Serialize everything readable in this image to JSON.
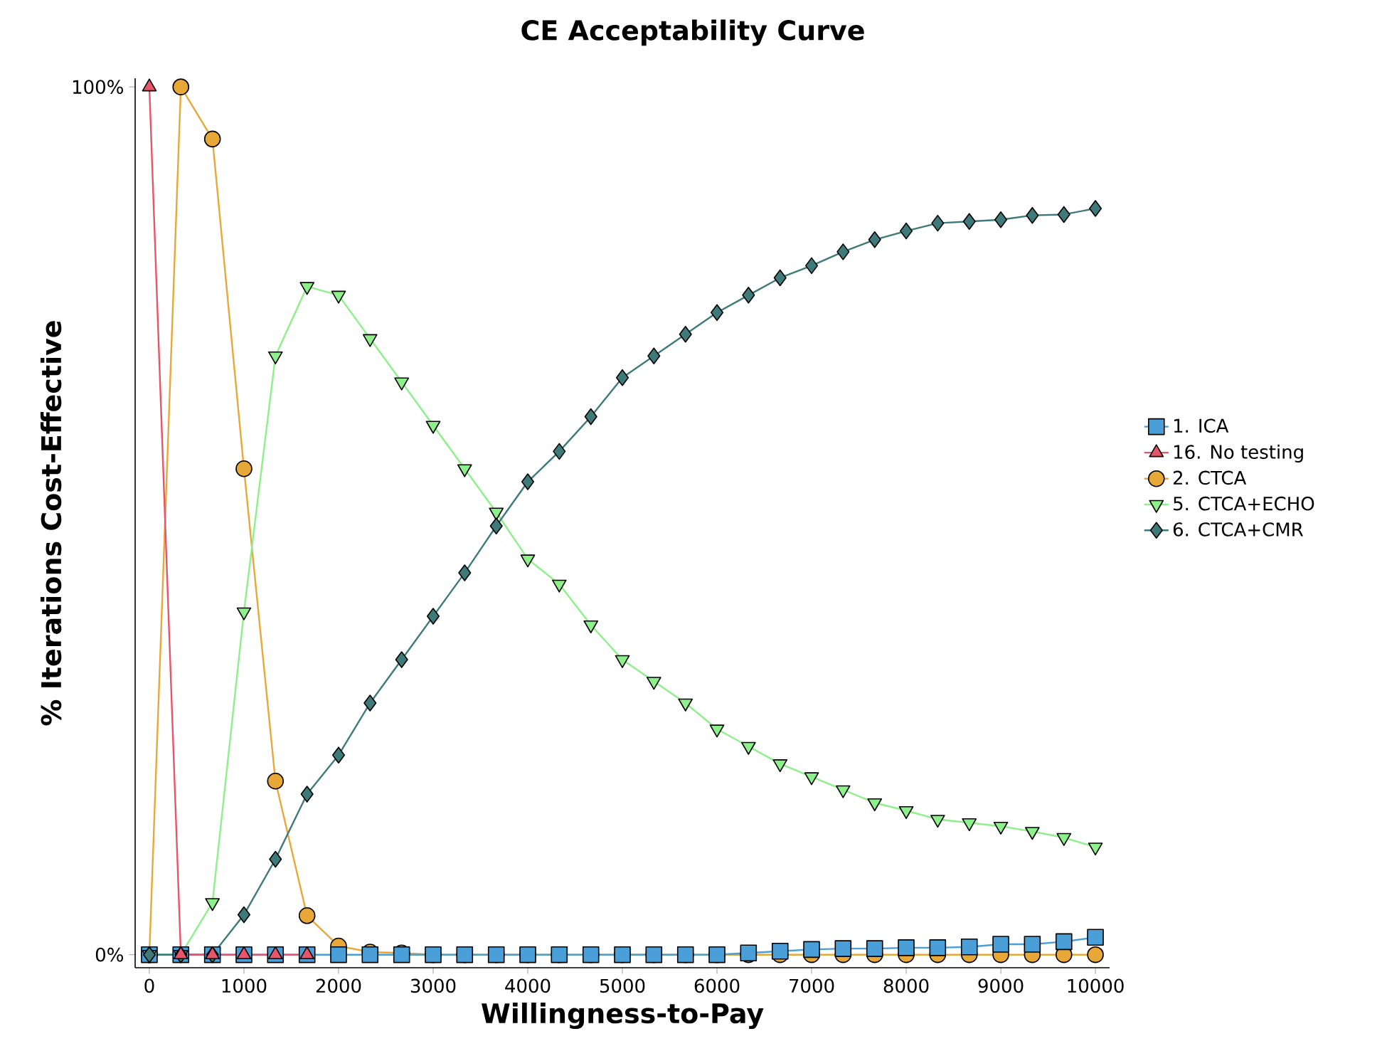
{
  "chart_data": {
    "type": "line",
    "title": "CE Acceptability Curve",
    "xlabel": "Willingness-to-Pay",
    "ylabel": "% Iterations Cost-Effective",
    "x": [
      0,
      333,
      667,
      1000,
      1333,
      1667,
      2000,
      2333,
      2667,
      3000,
      3333,
      3667,
      4000,
      4333,
      4667,
      5000,
      5333,
      5667,
      6000,
      6333,
      6667,
      7000,
      7333,
      7667,
      8000,
      8333,
      8667,
      9000,
      9333,
      9667,
      10000
    ],
    "series": [
      {
        "name": "1. ICA",
        "color": "#4a9fd8",
        "marker": "square",
        "values": [
          0,
          0,
          0,
          0,
          0,
          0,
          0,
          0,
          0,
          0,
          0,
          0,
          0,
          0,
          0,
          0,
          0,
          0,
          0,
          0.2,
          0.4,
          0.6,
          0.7,
          0.7,
          0.8,
          0.8,
          0.9,
          1.2,
          1.2,
          1.5,
          2.0
        ]
      },
      {
        "name": "16. No testing",
        "color": "#e8556a",
        "marker": "triangle",
        "values": [
          100,
          0,
          0,
          0,
          0,
          0,
          null,
          null,
          null,
          null,
          null,
          null,
          null,
          null,
          null,
          null,
          null,
          null,
          null,
          null,
          null,
          null,
          null,
          null,
          null,
          null,
          null,
          null,
          null,
          null,
          null
        ]
      },
      {
        "name": "2. CTCA",
        "color": "#e8a838",
        "marker": "circle",
        "values": [
          0,
          100,
          94,
          56,
          20,
          4.5,
          1,
          0.3,
          0.2,
          0,
          0,
          0,
          0,
          0,
          0,
          0,
          0,
          0,
          0,
          0,
          0,
          0,
          0,
          0,
          0,
          0,
          0,
          0,
          0,
          0,
          0
        ]
      },
      {
        "name": "5. CTCA+ECHO",
        "color": "#8ef08a",
        "marker": "triangle-down",
        "values": [
          0,
          0,
          6,
          39.5,
          69,
          77,
          76,
          71,
          66,
          61,
          56,
          51,
          45.6,
          42.7,
          38,
          34,
          31.5,
          29,
          26,
          24,
          22,
          20.5,
          19,
          17.5,
          16.6,
          15.6,
          15.2,
          14.8,
          14.2,
          13.5,
          12.4
        ]
      },
      {
        "name": "6. CTCA+CMR",
        "color": "#3f7a7a",
        "marker": "diamond",
        "values": [
          0,
          0,
          0,
          4.6,
          11,
          18.5,
          23,
          29,
          34,
          39,
          44,
          49.4,
          54.5,
          58,
          62,
          66.5,
          69,
          71.5,
          74,
          76,
          78,
          79.4,
          81,
          82.4,
          83.4,
          84.3,
          84.5,
          84.7,
          85.2,
          85.3,
          86
        ]
      }
    ],
    "xlim": [
      -150,
      10150
    ],
    "ylim": [
      -1.5,
      101
    ],
    "xticks": [
      0,
      1000,
      2000,
      3000,
      4000,
      5000,
      6000,
      7000,
      8000,
      9000,
      10000
    ],
    "yticks": [
      {
        "value": 0,
        "label": "0%"
      },
      {
        "value": 100,
        "label": "100%"
      }
    ],
    "legend": "right",
    "grid": false,
    "line_style": "solid"
  }
}
